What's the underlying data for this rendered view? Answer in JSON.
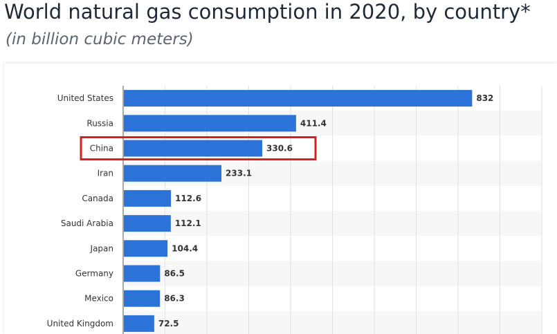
{
  "header": {
    "title": "World natural gas consumption in 2020, by country*",
    "subtitle": "(in billion cubic meters)"
  },
  "colors": {
    "bar": "#2b72d9",
    "highlight_box": "#d62020",
    "stripe": "#f7f7f7",
    "grid": "#e2e2e2"
  },
  "chart_data": {
    "type": "bar",
    "orientation": "horizontal",
    "title": "World natural gas consumption in 2020, by country*",
    "subtitle": "(in billion cubic meters)",
    "categories": [
      "United States",
      "Russia",
      "China",
      "Iran",
      "Canada",
      "Saudi Arabia",
      "Japan",
      "Germany",
      "Mexico",
      "United Kingdom"
    ],
    "values": [
      832,
      411.4,
      330.6,
      233.1,
      112.6,
      112.1,
      104.4,
      86.5,
      86.3,
      72.5
    ],
    "value_labels": [
      "832",
      "411.4",
      "330.6",
      "233.1",
      "112.6",
      "112.1",
      "104.4",
      "86.5",
      "86.3",
      "72.5"
    ],
    "xlim": [
      0,
      1000
    ],
    "grid": true,
    "highlighted_category": "China",
    "xlabel": "",
    "ylabel": ""
  }
}
